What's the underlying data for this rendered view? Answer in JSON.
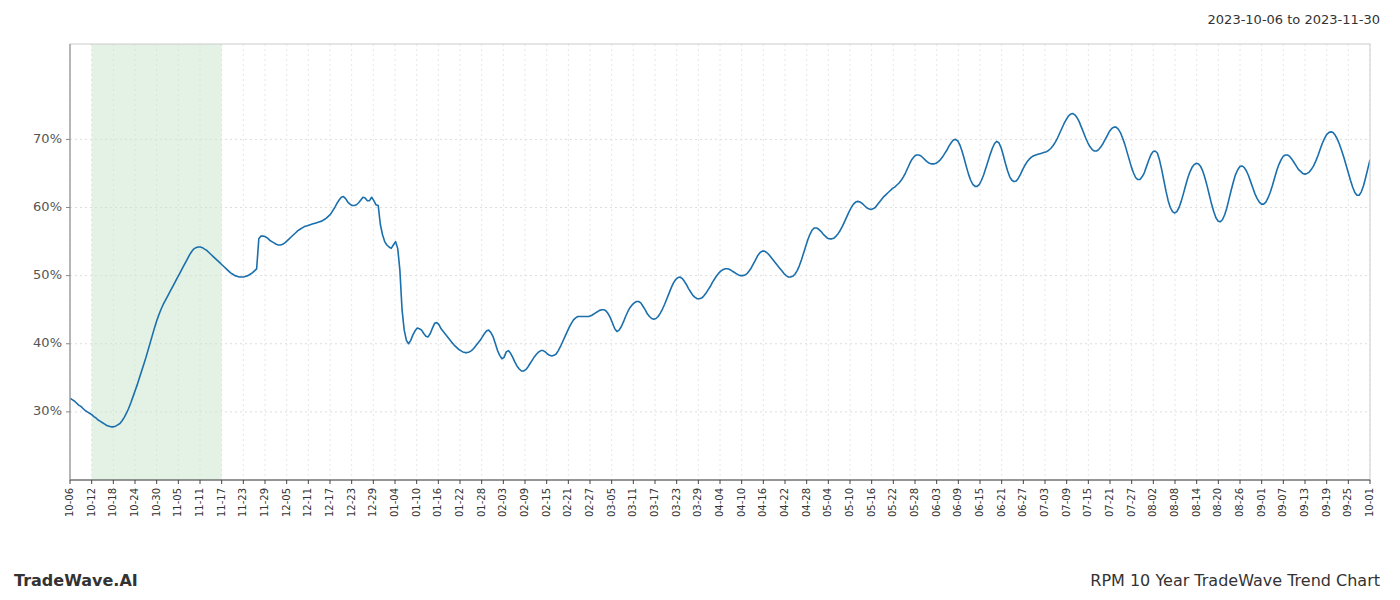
{
  "chart_data": {
    "type": "line",
    "title": "RPM 10 Year TradeWave Trend Chart",
    "subtitle": "2023-10-06 to 2023-11-30",
    "annotations": [
      "TradeWave.AI"
    ],
    "color": "#1a6fad",
    "grid": true,
    "span": {
      "from": "10-12",
      "to": "11-17",
      "color": "#c8e6c9"
    },
    "ylim": [
      0.2,
      0.84
    ],
    "yticks": [
      {
        "value": 0.3,
        "label": "30%"
      },
      {
        "value": 0.4,
        "label": "40%"
      },
      {
        "value": 0.5,
        "label": "50%"
      },
      {
        "value": 0.6,
        "label": "60%"
      },
      {
        "value": 0.7,
        "label": "70%"
      }
    ],
    "xlim": [
      0,
      599
    ],
    "xticks": [
      {
        "value": 0,
        "label": "10-06"
      },
      {
        "value": 9.983333,
        "label": "10-12"
      },
      {
        "value": 19.966667,
        "label": "10-18"
      },
      {
        "value": 29.95,
        "label": "10-24"
      },
      {
        "value": 39.933333,
        "label": "10-30"
      },
      {
        "value": 49.916667,
        "label": "11-05"
      },
      {
        "value": 59.9,
        "label": "11-11"
      },
      {
        "value": 69.883333,
        "label": "11-17"
      },
      {
        "value": 79.866667,
        "label": "11-23"
      },
      {
        "value": 89.85,
        "label": "11-29"
      },
      {
        "value": 99.833333,
        "label": "12-05"
      },
      {
        "value": 109.816667,
        "label": "12-11"
      },
      {
        "value": 119.8,
        "label": "12-17"
      },
      {
        "value": 129.783333,
        "label": "12-23"
      },
      {
        "value": 139.766667,
        "label": "12-29"
      },
      {
        "value": 149.75,
        "label": "01-04"
      },
      {
        "value": 159.733333,
        "label": "01-10"
      },
      {
        "value": 169.716667,
        "label": "01-16"
      },
      {
        "value": 179.7,
        "label": "01-22"
      },
      {
        "value": 189.683333,
        "label": "01-28"
      },
      {
        "value": 199.666667,
        "label": "02-03"
      },
      {
        "value": 209.65,
        "label": "02-09"
      },
      {
        "value": 219.633333,
        "label": "02-15"
      },
      {
        "value": 229.616667,
        "label": "02-21"
      },
      {
        "value": 239.6,
        "label": "02-27"
      },
      {
        "value": 249.583333,
        "label": "03-05"
      },
      {
        "value": 259.566667,
        "label": "03-11"
      },
      {
        "value": 269.55,
        "label": "03-17"
      },
      {
        "value": 279.533333,
        "label": "03-23"
      },
      {
        "value": 289.516667,
        "label": "03-29"
      },
      {
        "value": 299.5,
        "label": "04-04"
      },
      {
        "value": 309.483333,
        "label": "04-10"
      },
      {
        "value": 319.466667,
        "label": "04-16"
      },
      {
        "value": 329.45,
        "label": "04-22"
      },
      {
        "value": 339.433333,
        "label": "04-28"
      },
      {
        "value": 349.416667,
        "label": "05-04"
      },
      {
        "value": 359.4,
        "label": "05-10"
      },
      {
        "value": 369.383333,
        "label": "05-16"
      },
      {
        "value": 379.366667,
        "label": "05-22"
      },
      {
        "value": 389.35,
        "label": "05-28"
      },
      {
        "value": 399.333333,
        "label": "06-03"
      },
      {
        "value": 409.316667,
        "label": "06-09"
      },
      {
        "value": 419.3,
        "label": "06-15"
      },
      {
        "value": 429.283333,
        "label": "06-21"
      },
      {
        "value": 439.266667,
        "label": "06-27"
      },
      {
        "value": 449.25,
        "label": "07-03"
      },
      {
        "value": 459.233333,
        "label": "07-09"
      },
      {
        "value": 469.216667,
        "label": "07-15"
      },
      {
        "value": 479.2,
        "label": "07-21"
      },
      {
        "value": 489.183333,
        "label": "07-27"
      },
      {
        "value": 499.166667,
        "label": "08-02"
      },
      {
        "value": 509.15,
        "label": "08-08"
      },
      {
        "value": 519.133333,
        "label": "08-14"
      },
      {
        "value": 529.116667,
        "label": "08-20"
      },
      {
        "value": 539.1,
        "label": "08-26"
      },
      {
        "value": 549.083333,
        "label": "09-01"
      },
      {
        "value": 559.066667,
        "label": "09-07"
      },
      {
        "value": 569.05,
        "label": "09-13"
      },
      {
        "value": 579.033333,
        "label": "09-19"
      },
      {
        "value": 589.016667,
        "label": "09-25"
      },
      {
        "value": 599,
        "label": "10-01"
      }
    ],
    "values": [
      0.32,
      0.318,
      0.316,
      0.313,
      0.31,
      0.308,
      0.305,
      0.302,
      0.3,
      0.298,
      0.296,
      0.293,
      0.291,
      0.288,
      0.286,
      0.284,
      0.282,
      0.28,
      0.279,
      0.278,
      0.278,
      0.279,
      0.281,
      0.283,
      0.287,
      0.292,
      0.298,
      0.305,
      0.313,
      0.322,
      0.331,
      0.34,
      0.35,
      0.36,
      0.37,
      0.38,
      0.391,
      0.402,
      0.413,
      0.424,
      0.434,
      0.443,
      0.451,
      0.458,
      0.464,
      0.47,
      0.476,
      0.482,
      0.488,
      0.494,
      0.5,
      0.506,
      0.512,
      0.518,
      0.524,
      0.53,
      0.535,
      0.539,
      0.541,
      0.542,
      0.542,
      0.541,
      0.539,
      0.537,
      0.534,
      0.531,
      0.528,
      0.525,
      0.522,
      0.519,
      0.516,
      0.513,
      0.51,
      0.507,
      0.504,
      0.502,
      0.5,
      0.499,
      0.498,
      0.498,
      0.498,
      0.499,
      0.5,
      0.502,
      0.504,
      0.507,
      0.51,
      0.554,
      0.558,
      0.558,
      0.557,
      0.555,
      0.552,
      0.55,
      0.548,
      0.546,
      0.545,
      0.545,
      0.546,
      0.548,
      0.551,
      0.554,
      0.557,
      0.56,
      0.563,
      0.566,
      0.568,
      0.57,
      0.572,
      0.573,
      0.574,
      0.575,
      0.576,
      0.577,
      0.578,
      0.579,
      0.58,
      0.582,
      0.584,
      0.587,
      0.59,
      0.595,
      0.6,
      0.606,
      0.611,
      0.615,
      0.616,
      0.613,
      0.608,
      0.605,
      0.603,
      0.603,
      0.604,
      0.607,
      0.611,
      0.615,
      0.614,
      0.61,
      0.61,
      0.615,
      0.61,
      0.604,
      0.603,
      0.575,
      0.56,
      0.55,
      0.545,
      0.542,
      0.54,
      0.545,
      0.55,
      0.54,
      0.508,
      0.45,
      0.42,
      0.405,
      0.4,
      0.405,
      0.413,
      0.419,
      0.423,
      0.422,
      0.42,
      0.415,
      0.411,
      0.41,
      0.415,
      0.423,
      0.43,
      0.431,
      0.428,
      0.422,
      0.418,
      0.414,
      0.41,
      0.406,
      0.402,
      0.398,
      0.395,
      0.392,
      0.39,
      0.388,
      0.387,
      0.387,
      0.388,
      0.39,
      0.393,
      0.397,
      0.401,
      0.405,
      0.41,
      0.415,
      0.419,
      0.42,
      0.416,
      0.41,
      0.4,
      0.39,
      0.383,
      0.378,
      0.38,
      0.388,
      0.39,
      0.386,
      0.38,
      0.373,
      0.367,
      0.363,
      0.36,
      0.36,
      0.362,
      0.366,
      0.371,
      0.376,
      0.381,
      0.385,
      0.388,
      0.39,
      0.39,
      0.388,
      0.385,
      0.383,
      0.382,
      0.383,
      0.385,
      0.39,
      0.396,
      0.403,
      0.41,
      0.417,
      0.424,
      0.43,
      0.435,
      0.438,
      0.44,
      0.44,
      0.44,
      0.44,
      0.44,
      0.44,
      0.441,
      0.443,
      0.445,
      0.447,
      0.449,
      0.45,
      0.45,
      0.448,
      0.444,
      0.438,
      0.43,
      0.422,
      0.418,
      0.42,
      0.425,
      0.432,
      0.44,
      0.447,
      0.453,
      0.457,
      0.46,
      0.462,
      0.462,
      0.46,
      0.455,
      0.45,
      0.444,
      0.44,
      0.437,
      0.436,
      0.437,
      0.44,
      0.445,
      0.451,
      0.458,
      0.466,
      0.474,
      0.482,
      0.489,
      0.494,
      0.497,
      0.498,
      0.496,
      0.492,
      0.487,
      0.481,
      0.476,
      0.471,
      0.468,
      0.466,
      0.466,
      0.467,
      0.47,
      0.474,
      0.479,
      0.484,
      0.49,
      0.495,
      0.5,
      0.504,
      0.507,
      0.509,
      0.51,
      0.51,
      0.509,
      0.507,
      0.505,
      0.503,
      0.501,
      0.5,
      0.5,
      0.501,
      0.503,
      0.507,
      0.512,
      0.518,
      0.524,
      0.53,
      0.534,
      0.536,
      0.536,
      0.534,
      0.531,
      0.527,
      0.523,
      0.519,
      0.515,
      0.511,
      0.507,
      0.503,
      0.5,
      0.498,
      0.498,
      0.499,
      0.502,
      0.507,
      0.514,
      0.523,
      0.533,
      0.543,
      0.553,
      0.561,
      0.567,
      0.57,
      0.57,
      0.568,
      0.565,
      0.561,
      0.558,
      0.555,
      0.554,
      0.554,
      0.555,
      0.558,
      0.562,
      0.567,
      0.573,
      0.58,
      0.587,
      0.594,
      0.6,
      0.605,
      0.608,
      0.609,
      0.608,
      0.606,
      0.603,
      0.6,
      0.598,
      0.597,
      0.598,
      0.6,
      0.604,
      0.608,
      0.612,
      0.616,
      0.619,
      0.622,
      0.625,
      0.628,
      0.63,
      0.633,
      0.636,
      0.64,
      0.645,
      0.651,
      0.658,
      0.665,
      0.671,
      0.675,
      0.677,
      0.677,
      0.676,
      0.673,
      0.67,
      0.667,
      0.665,
      0.664,
      0.664,
      0.665,
      0.667,
      0.67,
      0.674,
      0.679,
      0.684,
      0.69,
      0.695,
      0.699,
      0.7,
      0.698,
      0.692,
      0.683,
      0.672,
      0.66,
      0.649,
      0.64,
      0.634,
      0.631,
      0.631,
      0.634,
      0.64,
      0.648,
      0.658,
      0.668,
      0.678,
      0.687,
      0.694,
      0.697,
      0.695,
      0.688,
      0.677,
      0.665,
      0.654,
      0.645,
      0.64,
      0.638,
      0.639,
      0.643,
      0.649,
      0.656,
      0.662,
      0.667,
      0.671,
      0.674,
      0.676,
      0.677,
      0.678,
      0.679,
      0.68,
      0.681,
      0.682,
      0.684,
      0.687,
      0.691,
      0.696,
      0.702,
      0.709,
      0.716,
      0.723,
      0.729,
      0.734,
      0.737,
      0.738,
      0.736,
      0.732,
      0.726,
      0.718,
      0.71,
      0.702,
      0.695,
      0.689,
      0.685,
      0.683,
      0.683,
      0.685,
      0.689,
      0.694,
      0.7,
      0.706,
      0.712,
      0.716,
      0.718,
      0.718,
      0.715,
      0.71,
      0.702,
      0.693,
      0.682,
      0.671,
      0.66,
      0.651,
      0.644,
      0.641,
      0.641,
      0.645,
      0.651,
      0.66,
      0.669,
      0.677,
      0.682,
      0.683,
      0.68,
      0.67,
      0.656,
      0.64,
      0.624,
      0.61,
      0.6,
      0.594,
      0.592,
      0.594,
      0.6,
      0.609,
      0.62,
      0.632,
      0.643,
      0.652,
      0.659,
      0.663,
      0.665,
      0.664,
      0.66,
      0.653,
      0.643,
      0.631,
      0.618,
      0.605,
      0.594,
      0.585,
      0.58,
      0.579,
      0.582,
      0.589,
      0.599,
      0.612,
      0.625,
      0.637,
      0.648,
      0.655,
      0.66,
      0.661,
      0.659,
      0.654,
      0.647,
      0.638,
      0.629,
      0.62,
      0.613,
      0.608,
      0.605,
      0.605,
      0.608,
      0.614,
      0.622,
      0.632,
      0.643,
      0.654,
      0.663,
      0.67,
      0.675,
      0.677,
      0.677,
      0.675,
      0.671,
      0.666,
      0.661,
      0.656,
      0.653,
      0.65,
      0.649,
      0.65,
      0.652,
      0.656,
      0.661,
      0.668,
      0.676,
      0.685,
      0.694,
      0.701,
      0.707,
      0.71,
      0.711,
      0.71,
      0.706,
      0.7,
      0.692,
      0.683,
      0.673,
      0.662,
      0.651,
      0.64,
      0.63,
      0.622,
      0.618,
      0.618,
      0.623,
      0.632,
      0.644,
      0.657,
      0.67
    ]
  }
}
